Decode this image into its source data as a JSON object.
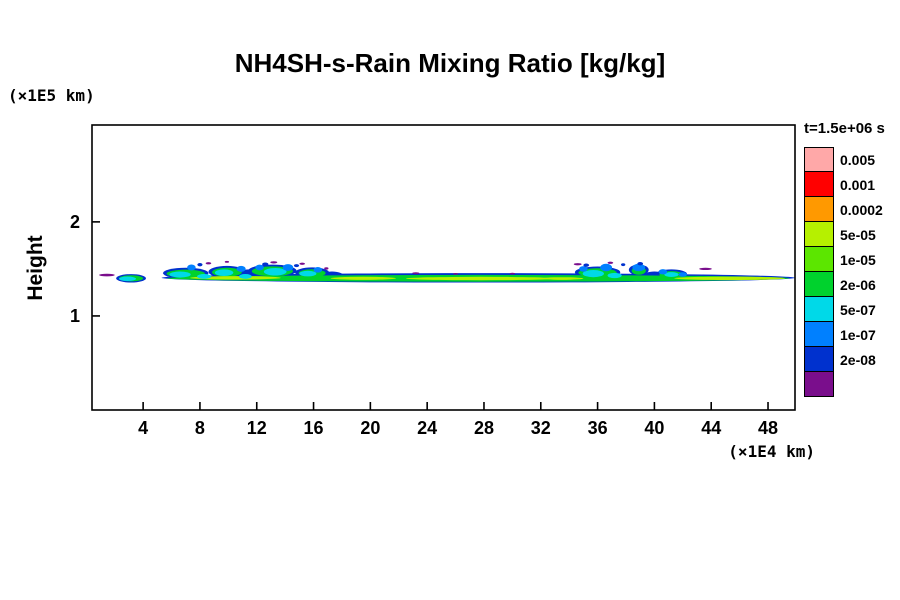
{
  "title": "NH4SH-s-Rain Mixing Ratio [kg/kg]",
  "legend": {
    "time_label": "t=1.5e+06 s"
  },
  "chart_data": {
    "type": "contour",
    "title": "NH4SH-s-Rain Mixing Ratio [kg/kg]",
    "time_label": "t=1.5e+06 s",
    "x": {
      "unit": "(×1E4 km)",
      "ticks": [
        4,
        8,
        12,
        16,
        20,
        24,
        28,
        32,
        36,
        40,
        44,
        48
      ],
      "range": [
        0.4,
        49.9
      ]
    },
    "y": {
      "label": "Height",
      "unit": "(×1E5 km)",
      "ticks": [
        1,
        2
      ],
      "range": [
        0,
        3.03
      ]
    },
    "levels": [
      {
        "label": "0.005",
        "color": "#FFA8A8"
      },
      {
        "label": "0.001",
        "color": "#FF0000"
      },
      {
        "label": "0.0002",
        "color": "#FF9900"
      },
      {
        "label": "5e-05",
        "color": "#B6F000"
      },
      {
        "label": "1e-05",
        "color": "#5CE600"
      },
      {
        "label": "2e-06",
        "color": "#00D22D"
      },
      {
        "label": "5e-07",
        "color": "#00D9E8"
      },
      {
        "label": "1e-07",
        "color": "#0080FF"
      },
      {
        "label": "2e-08",
        "color": "#0031CE"
      },
      {
        "label": "",
        "color": "#7A0E8C"
      }
    ],
    "band": {
      "description": "Thin rain mixing-ratio band at height ~1.4 (x1E5 km) spanning x~1 to x~50 (x1E4 km); green/yellow-green core with cyan-blue cloud clusters near x=5-17 and x=34-42, dark-blue outline and purple specks above the band",
      "layers": [
        {
          "name": "band-outline",
          "color": "#0031CE",
          "blobs": [
            [
              27.6,
              1.405,
              22.3,
              0.05
            ],
            [
              3.15,
              1.4,
              1.05,
              0.045
            ],
            [
              7.0,
              1.455,
              1.6,
              0.058
            ],
            [
              9.9,
              1.47,
              1.3,
              0.062
            ],
            [
              11.5,
              1.445,
              1.0,
              0.05
            ],
            [
              13.1,
              1.48,
              1.7,
              0.066
            ],
            [
              15.9,
              1.46,
              1.2,
              0.056
            ],
            [
              17.3,
              1.43,
              0.8,
              0.042
            ],
            [
              36.0,
              1.465,
              1.6,
              0.06
            ],
            [
              38.9,
              1.49,
              0.7,
              0.056
            ],
            [
              40.0,
              1.43,
              0.8,
              0.042
            ],
            [
              41.2,
              1.445,
              1.1,
              0.05
            ]
          ]
        },
        {
          "name": "band-green",
          "color": "#00D22D",
          "blobs": [
            [
              27.6,
              1.4,
              21.9,
              0.036
            ],
            [
              3.15,
              1.4,
              0.85,
              0.032
            ],
            [
              7.0,
              1.45,
              1.35,
              0.042
            ],
            [
              9.9,
              1.465,
              1.05,
              0.047
            ],
            [
              13.1,
              1.475,
              1.45,
              0.052
            ],
            [
              15.9,
              1.455,
              0.95,
              0.042
            ],
            [
              36.0,
              1.46,
              1.35,
              0.047
            ],
            [
              38.9,
              1.48,
              0.5,
              0.042
            ],
            [
              41.2,
              1.44,
              0.85,
              0.037
            ]
          ]
        },
        {
          "name": "band-core",
          "color": "#B6F000",
          "blobs": [
            [
              10.5,
              1.405,
              3.2,
              0.018
            ],
            [
              19.5,
              1.4,
              2.3,
              0.016
            ],
            [
              27.8,
              1.398,
              5.3,
              0.018
            ],
            [
              33.5,
              1.398,
              1.5,
              0.014
            ],
            [
              45.3,
              1.4,
              3.9,
              0.018
            ]
          ]
        },
        {
          "name": "cyan-patches",
          "color": "#00D9E8",
          "blobs": [
            [
              2.9,
              1.395,
              0.6,
              0.024
            ],
            [
              6.6,
              1.44,
              0.75,
              0.032
            ],
            [
              8.3,
              1.42,
              0.5,
              0.026
            ],
            [
              9.7,
              1.46,
              0.65,
              0.035
            ],
            [
              11.2,
              1.42,
              0.45,
              0.026
            ],
            [
              13.3,
              1.47,
              0.8,
              0.04
            ],
            [
              15.6,
              1.45,
              0.6,
              0.03
            ],
            [
              35.7,
              1.45,
              0.75,
              0.038
            ],
            [
              37.2,
              1.43,
              0.5,
              0.028
            ],
            [
              41.2,
              1.44,
              0.5,
              0.026
            ]
          ]
        },
        {
          "name": "blue-patches",
          "color": "#0080FF",
          "blobs": [
            [
              7.4,
              1.515,
              0.3,
              0.032
            ],
            [
              10.9,
              1.5,
              0.32,
              0.032
            ],
            [
              12.2,
              1.515,
              0.3,
              0.03
            ],
            [
              14.2,
              1.515,
              0.38,
              0.036
            ],
            [
              16.3,
              1.49,
              0.3,
              0.03
            ],
            [
              35.0,
              1.5,
              0.3,
              0.03
            ],
            [
              36.6,
              1.515,
              0.42,
              0.04
            ],
            [
              38.9,
              1.515,
              0.45,
              0.04
            ],
            [
              40.6,
              1.47,
              0.3,
              0.028
            ],
            [
              42.0,
              1.44,
              0.3,
              0.024
            ]
          ]
        },
        {
          "name": "navy-specks",
          "color": "#0031CE",
          "blobs": [
            [
              8.0,
              1.545,
              0.18,
              0.018
            ],
            [
              12.6,
              1.55,
              0.22,
              0.018
            ],
            [
              14.8,
              1.535,
              0.18,
              0.016
            ],
            [
              35.2,
              1.54,
              0.2,
              0.018
            ],
            [
              37.8,
              1.545,
              0.15,
              0.015
            ],
            [
              39.0,
              1.555,
              0.2,
              0.018
            ]
          ]
        },
        {
          "name": "purple-specks",
          "color": "#7A0E8C",
          "blobs": [
            [
              1.45,
              1.435,
              0.55,
              0.014
            ],
            [
              8.6,
              1.56,
              0.2,
              0.012
            ],
            [
              9.9,
              1.575,
              0.15,
              0.01
            ],
            [
              13.2,
              1.57,
              0.25,
              0.012
            ],
            [
              15.2,
              1.555,
              0.2,
              0.012
            ],
            [
              16.9,
              1.505,
              0.15,
              0.012
            ],
            [
              23.2,
              1.455,
              0.25,
              0.01
            ],
            [
              26.0,
              1.448,
              0.18,
              0.009
            ],
            [
              30.0,
              1.45,
              0.2,
              0.009
            ],
            [
              34.6,
              1.55,
              0.28,
              0.012
            ],
            [
              36.9,
              1.565,
              0.2,
              0.012
            ],
            [
              43.6,
              1.5,
              0.45,
              0.012
            ]
          ]
        }
      ]
    }
  }
}
